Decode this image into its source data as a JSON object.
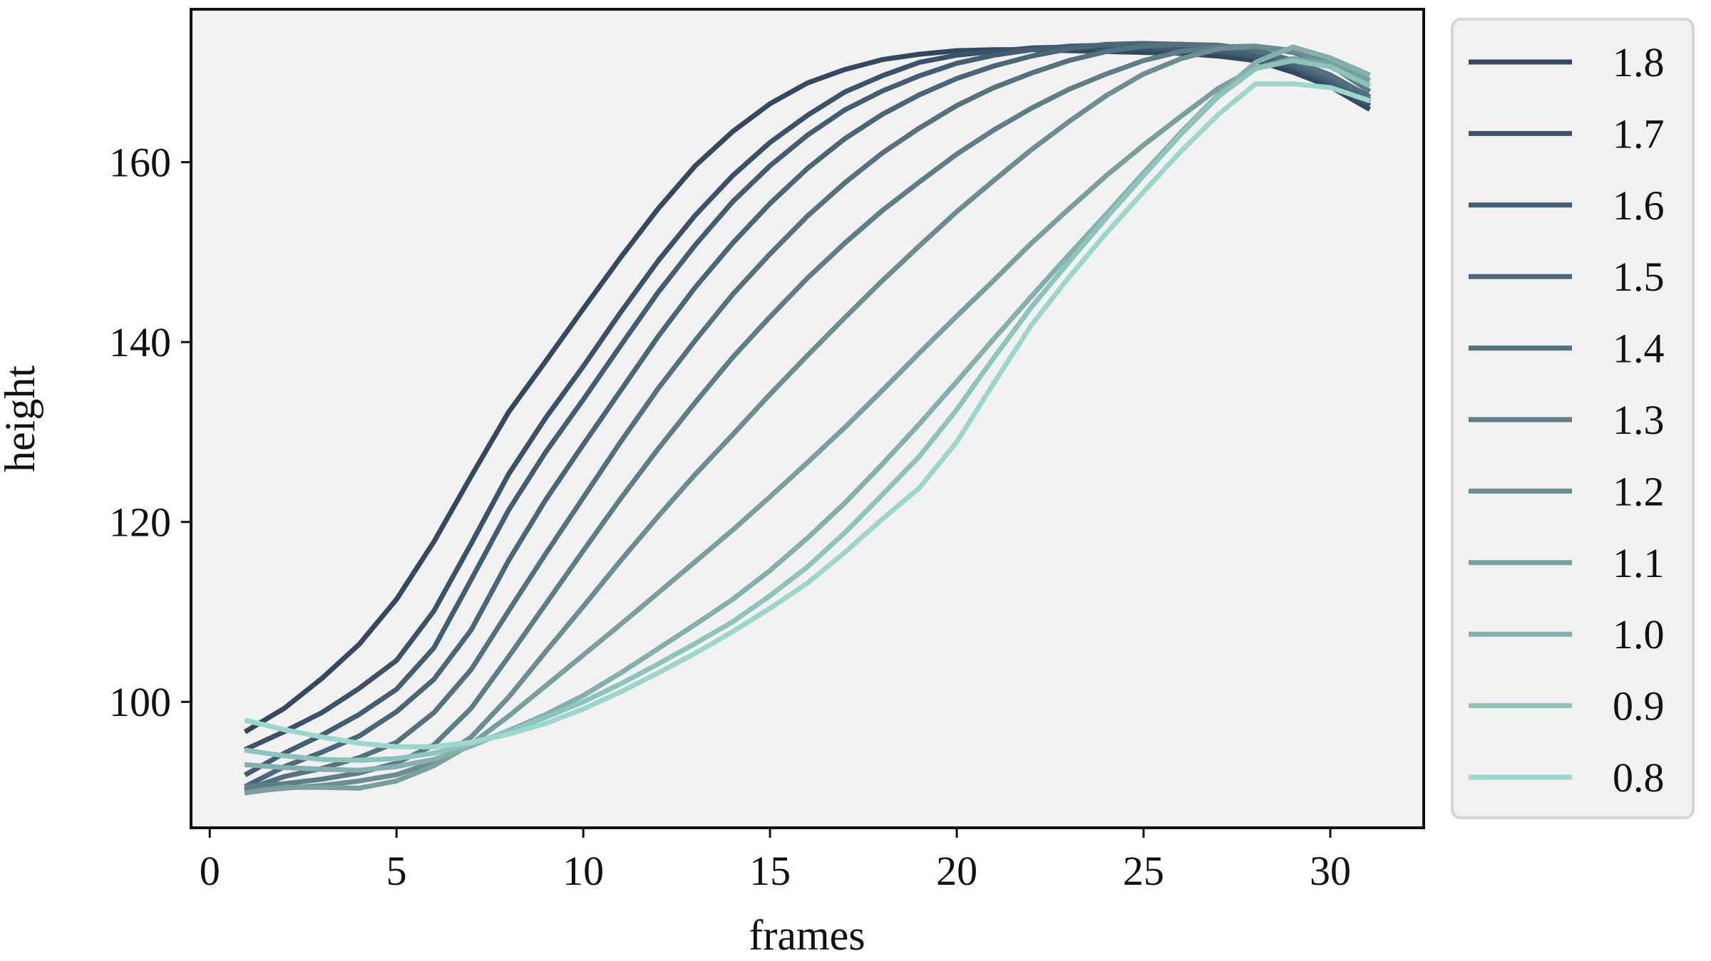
{
  "chart_data": {
    "type": "line",
    "xlabel": "frames",
    "ylabel": "height",
    "xlim": [
      -0.5,
      32.5
    ],
    "ylim": [
      86,
      177
    ],
    "xticks": [
      0,
      5,
      10,
      15,
      20,
      25,
      30
    ],
    "yticks": [
      100,
      120,
      140,
      160
    ],
    "grid": false,
    "background": "#f1f1f1",
    "legend_position": "outside-right",
    "x": [
      1,
      2,
      3,
      4,
      5,
      6,
      7,
      8,
      9,
      10,
      11,
      12,
      13,
      14,
      15,
      16,
      17,
      18,
      19,
      20,
      21,
      22,
      23,
      24,
      25,
      26,
      27,
      28,
      29,
      30,
      31
    ],
    "series": [
      {
        "name": "1.8",
        "color": "#34485e",
        "values": [
          96.8,
          99.3,
          102.6,
          106.4,
          111.4,
          117.8,
          125.1,
          132.2,
          137.9,
          143.7,
          149.4,
          154.8,
          159.6,
          163.4,
          166.5,
          168.8,
          170.3,
          171.4,
          172.0,
          172.4,
          172.5,
          172.5,
          172.4,
          172.3,
          172.2,
          172.1,
          171.8,
          171.3,
          170.0,
          168.4,
          166.0
        ]
      },
      {
        "name": "1.7",
        "color": "#3c5269",
        "values": [
          94.8,
          96.7,
          98.8,
          101.5,
          104.6,
          110.1,
          117.6,
          125.3,
          131.6,
          137.3,
          143.3,
          149.0,
          154.1,
          158.5,
          162.2,
          165.2,
          167.8,
          169.6,
          171.1,
          171.9,
          172.3,
          172.7,
          172.8,
          172.7,
          172.6,
          172.4,
          172.2,
          171.7,
          170.5,
          168.8,
          166.4
        ]
      },
      {
        "name": "1.6",
        "color": "#435e72",
        "values": [
          92.0,
          94.3,
          96.3,
          98.6,
          101.4,
          106.0,
          113.6,
          121.3,
          127.8,
          133.6,
          139.6,
          145.5,
          150.8,
          155.6,
          159.6,
          163.0,
          165.8,
          167.9,
          169.6,
          171.0,
          171.9,
          172.5,
          172.9,
          173.0,
          172.9,
          172.7,
          172.4,
          171.9,
          170.7,
          169.0,
          166.8
        ]
      },
      {
        "name": "1.5",
        "color": "#4a6777",
        "values": [
          90.7,
          92.8,
          94.4,
          96.2,
          98.9,
          102.5,
          108.0,
          115.7,
          122.5,
          128.6,
          134.6,
          140.6,
          146.1,
          151.0,
          155.4,
          159.3,
          162.6,
          165.3,
          167.5,
          169.3,
          170.7,
          171.8,
          172.6,
          173.1,
          173.2,
          173.1,
          172.8,
          172.3,
          171.0,
          169.3,
          167.1
        ]
      },
      {
        "name": "1.4",
        "color": "#55717d",
        "values": [
          90.3,
          91.7,
          92.6,
          93.8,
          95.5,
          98.8,
          103.6,
          110.1,
          116.5,
          122.7,
          128.9,
          134.8,
          140.2,
          145.3,
          149.8,
          154.0,
          157.7,
          161.0,
          163.8,
          166.3,
          168.3,
          169.9,
          171.3,
          172.3,
          172.9,
          173.1,
          173.0,
          172.5,
          171.3,
          169.7,
          167.4
        ]
      },
      {
        "name": "1.3",
        "color": "#5e7e86",
        "values": [
          90.6,
          90.9,
          91.4,
          92.1,
          93.2,
          95.2,
          99.3,
          105.0,
          110.9,
          116.8,
          122.6,
          128.1,
          133.3,
          138.3,
          142.8,
          147.1,
          151.0,
          154.6,
          157.8,
          160.9,
          163.6,
          166.0,
          168.1,
          169.8,
          171.3,
          172.3,
          172.8,
          172.9,
          172.2,
          170.8,
          168.0
        ]
      },
      {
        "name": "1.2",
        "color": "#6c8e92",
        "values": [
          90.0,
          90.4,
          90.7,
          91.2,
          91.9,
          93.3,
          96.1,
          100.5,
          105.6,
          110.6,
          115.7,
          120.6,
          125.3,
          129.7,
          134.2,
          138.5,
          142.7,
          146.8,
          150.7,
          154.5,
          158.0,
          161.4,
          164.5,
          167.4,
          169.8,
          171.5,
          172.6,
          172.9,
          172.4,
          171.0,
          168.6
        ]
      },
      {
        "name": "1.1",
        "color": "#78a09f",
        "values": [
          89.9,
          90.5,
          90.5,
          90.4,
          91.2,
          92.9,
          95.3,
          98.4,
          101.8,
          105.2,
          108.6,
          112.1,
          115.6,
          119.1,
          122.8,
          126.6,
          130.5,
          134.6,
          138.8,
          142.9,
          146.9,
          151.0,
          154.8,
          158.5,
          161.9,
          165.1,
          168.2,
          170.5,
          171.5,
          171.0,
          169.2
        ]
      },
      {
        "name": "1.0",
        "color": "#83b0ac",
        "values": [
          93.0,
          92.7,
          92.5,
          92.4,
          92.8,
          93.6,
          95.1,
          96.8,
          98.6,
          100.7,
          103.2,
          105.9,
          108.6,
          111.4,
          114.6,
          118.2,
          122.1,
          126.4,
          130.9,
          135.6,
          140.4,
          145.1,
          149.7,
          154.2,
          158.8,
          163.3,
          167.5,
          171.1,
          172.8,
          171.6,
          169.8
        ]
      },
      {
        "name": "0.9",
        "color": "#8cc4bc",
        "values": [
          94.6,
          94.0,
          93.6,
          93.5,
          93.7,
          94.3,
          95.3,
          96.7,
          98.3,
          100.0,
          102.0,
          104.2,
          106.5,
          108.9,
          111.8,
          115.0,
          118.8,
          123.0,
          127.3,
          132.5,
          138.3,
          143.9,
          148.9,
          153.8,
          158.5,
          163.1,
          167.3,
          170.4,
          171.3,
          170.6,
          168.6
        ]
      },
      {
        "name": "0.8",
        "color": "#9cd7cc",
        "values": [
          97.9,
          96.9,
          96.1,
          95.4,
          95.0,
          95.0,
          95.5,
          96.4,
          97.6,
          99.2,
          101.1,
          103.2,
          105.4,
          107.8,
          110.4,
          113.2,
          116.6,
          120.3,
          123.8,
          128.9,
          135.5,
          141.9,
          147.2,
          152.1,
          156.7,
          161.2,
          165.3,
          168.7,
          168.7,
          168.3,
          166.9
        ]
      }
    ]
  }
}
